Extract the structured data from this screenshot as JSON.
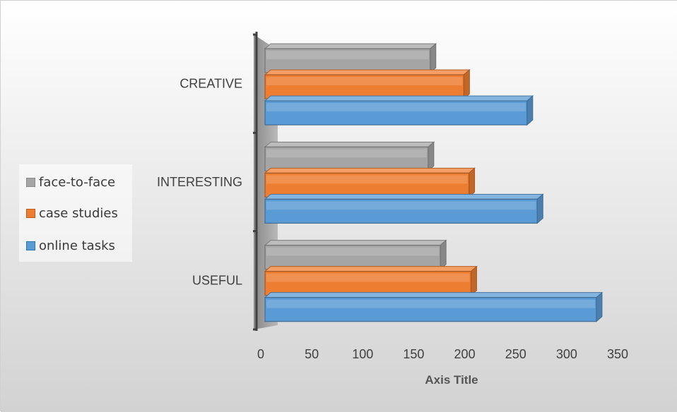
{
  "chart_data": {
    "type": "bar",
    "orientation": "horizontal",
    "style": "3d-clustered-bar",
    "categories": [
      "USEFUL",
      "INTERESTING",
      "CREATIVE"
    ],
    "series": [
      {
        "name": "online tasks",
        "values": [
          325,
          267,
          257
        ],
        "color": "#5b9bd5"
      },
      {
        "name": "case studies",
        "values": [
          202,
          200,
          195
        ],
        "color": "#ed7d31"
      },
      {
        "name": "face-to-face",
        "values": [
          172,
          160,
          162
        ],
        "color": "#a5a5a5"
      }
    ],
    "xlabel": "Axis Title",
    "ylabel": "",
    "xlim": [
      0,
      350
    ],
    "xticks": [
      0,
      50,
      100,
      150,
      200,
      250,
      300,
      350
    ],
    "grid": false,
    "legend_position": "left",
    "legend_order": [
      "face-to-face",
      "case studies",
      "online tasks"
    ]
  }
}
